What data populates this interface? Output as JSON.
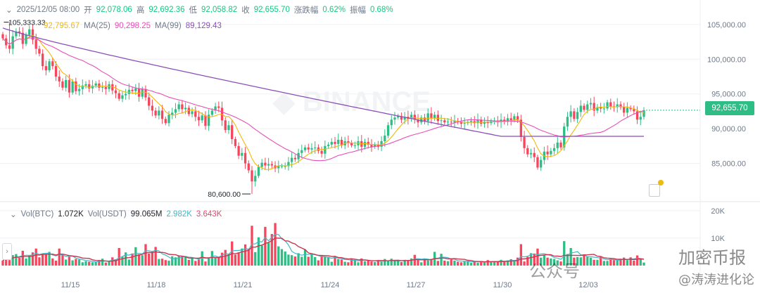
{
  "header": {
    "date": "2025/12/05 08:00",
    "open_label": "开",
    "open": "92,078.06",
    "high_label": "高",
    "high": "92,692.36",
    "low_label": "低",
    "low": "92,058.82",
    "close_label": "收",
    "close": "92,655.70",
    "change_label": "涨跌幅",
    "change": "0.62%",
    "amp_label": "振幅",
    "amp": "0.68%"
  },
  "ma_legend": {
    "ma7_value": "92,795.67",
    "ma25_label": "MA(25)",
    "ma25_value": "90,298.25",
    "ma99_label": "MA(99)",
    "ma99_value": "89,129.43"
  },
  "vol_legend": {
    "vol_label": "Vol(BTC)",
    "vol_value": "1.072K",
    "usdt_label": "Vol(USDT)",
    "usdt_value": "99.065M",
    "ma1": "2.982K",
    "ma2": "3.643K"
  },
  "current_price": "92,655.70",
  "watermark_logo": "BINANCE",
  "overlay_text": {
    "left": "公众号",
    "right": "加密币报",
    "brand": "@涛涛进化论"
  },
  "colors": {
    "up": "#2ebd85",
    "down": "#f6465d",
    "ma7": "#f0b90b",
    "ma25": "#e64fb8",
    "ma99": "#8b4fb8"
  },
  "chart_data": {
    "type": "candlestick",
    "interval": "4h",
    "price_axis": {
      "ticks": [
        "105,000.00",
        "100,000.00",
        "95,000.00",
        "90,000.00",
        "85,000.00"
      ],
      "range": [
        80000,
        106500
      ]
    },
    "volume_axis": {
      "ticks": [
        "20K",
        "10K"
      ],
      "range": [
        0,
        22000
      ]
    },
    "x_ticks": [
      "11/15",
      "11/18",
      "11/21",
      "11/24",
      "11/27",
      "11/30",
      "12/03"
    ],
    "annotations": {
      "high_label": "105,333.33",
      "low_label": "80,600.00"
    },
    "closes": [
      103000,
      102000,
      101500,
      103300,
      104000,
      103800,
      102200,
      103500,
      104300,
      102800,
      101500,
      100800,
      99000,
      98400,
      99700,
      99000,
      97500,
      96800,
      95900,
      97000,
      95200,
      96800,
      95400,
      95700,
      96200,
      96400,
      95800,
      96200,
      96500,
      95900,
      96000,
      95700,
      96400,
      95500,
      95100,
      94300,
      94800,
      95000,
      95600,
      95400,
      95800,
      94600,
      95700,
      94500,
      93300,
      92600,
      91900,
      92600,
      91400,
      90800,
      92000,
      92300,
      92800,
      93500,
      92800,
      93000,
      92100,
      92500,
      91700,
      91200,
      91900,
      90400,
      92000,
      92600,
      93200,
      93000,
      91200,
      89800,
      90500,
      88500,
      87500,
      86100,
      86500,
      85000,
      84000,
      82400,
      83200,
      84500,
      85100,
      84700,
      84900,
      84700,
      84300,
      84600,
      84600,
      84600,
      85200,
      85800,
      85600,
      86500,
      86900,
      87300,
      87000,
      87200,
      87300,
      86800,
      86400,
      87500,
      87700,
      88100,
      87800,
      88400,
      87600,
      88200,
      88000,
      87600,
      87600,
      88200,
      87400,
      88100,
      87700,
      87400,
      87700,
      87400,
      88200,
      89000,
      90500,
      91300,
      91600,
      91800,
      91300,
      91700,
      91400,
      92000,
      91300,
      90900,
      91600,
      91100,
      92200,
      91500,
      92000,
      91100,
      91200,
      90900,
      91000,
      90900,
      91100,
      91000,
      90700,
      90800,
      90900,
      91100,
      90800,
      91300,
      90700,
      91000,
      90800,
      91100,
      91100,
      90900,
      91300,
      91000,
      91500,
      91200,
      91800,
      91300,
      88800,
      87200,
      86300,
      86500,
      85900,
      84400,
      85500,
      86700,
      86300,
      86800,
      87200,
      88000,
      87300,
      90300,
      91700,
      92500,
      91400,
      92400,
      93300,
      92700,
      93500,
      93700,
      92600,
      93100,
      92900,
      92900,
      93800,
      93200,
      93100,
      93500,
      93100,
      92300,
      93000,
      92800,
      92500,
      91300,
      91700,
      92655.7
    ],
    "volumes": [
      1800,
      3600,
      2000,
      3800,
      4200,
      2800,
      5400,
      2600,
      3600,
      4800,
      6200,
      3000,
      4200,
      4200,
      5000,
      2600,
      1800,
      6200,
      3800,
      2200,
      3200,
      1900,
      2400,
      2200,
      1200,
      1600,
      1400,
      1200,
      1300,
      1900,
      2500,
      1100,
      1400,
      3000,
      2300,
      6400,
      3300,
      4800,
      2200,
      4400,
      6700,
      4100,
      3800,
      7800,
      4400,
      5300,
      6800,
      2400,
      2500,
      2000,
      1800,
      3400,
      3000,
      3600,
      3400,
      3200,
      2100,
      2700,
      1700,
      2200,
      5200,
      1500,
      2600,
      5300,
      3000,
      3000,
      4700,
      5700,
      4300,
      8800,
      4000,
      4800,
      6200,
      7700,
      6200,
      14500,
      4900,
      10300,
      7300,
      14100,
      8400,
      11500,
      15500,
      7000,
      6000,
      5100,
      4000,
      3800,
      3300,
      4500,
      3200,
      5900,
      3200,
      4300,
      3100,
      1900,
      3600,
      3200,
      3200,
      1400,
      3500,
      2400,
      2200,
      1400,
      1200,
      2600,
      2100,
      1200,
      2600,
      1600,
      1800,
      1500,
      1300,
      2000,
      1400,
      2400,
      1600,
      2500,
      1900,
      1700,
      1300,
      2100,
      1900,
      2600,
      3900,
      2000,
      1200,
      2600,
      1900,
      2400,
      5000,
      1700,
      4300,
      1800,
      1600,
      2200,
      1800,
      1400,
      1200,
      1500,
      1700,
      1000,
      1500,
      1000,
      1600,
      1200,
      2000,
      1500,
      1300,
      1500,
      2100,
      1500,
      1900,
      2300,
      1500,
      2900,
      7800,
      1500,
      3200,
      4500,
      4300,
      6200,
      2900,
      3700,
      2900,
      2600,
      2400,
      1900,
      1500,
      8900,
      4200,
      6400,
      2900,
      3100,
      3000,
      4100,
      3200,
      2900,
      2100,
      2100,
      3200,
      1700,
      1700,
      2400,
      2000,
      1800,
      2500,
      2900,
      2000,
      3000,
      1800,
      3700,
      2300,
      1100
    ]
  }
}
